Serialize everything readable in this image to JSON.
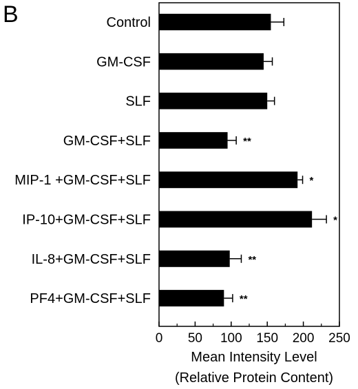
{
  "panel_label": "B",
  "chart_data": {
    "type": "bar",
    "orientation": "horizontal",
    "categories": [
      "Control",
      "GM-CSF",
      "SLF",
      "GM-CSF+SLF",
      "MIP-1 +GM-CSF+SLF",
      "IP-10+GM-CSF+SLF",
      "IL-8+GM-CSF+SLF",
      "PF4+GM-CSF+SLF"
    ],
    "values": [
      155,
      145,
      150,
      95,
      192,
      212,
      98,
      90
    ],
    "errors": [
      18,
      12,
      10,
      12,
      7,
      20,
      16,
      12
    ],
    "significance": [
      "",
      "",
      "",
      "**",
      "*",
      "*",
      "**",
      "**"
    ],
    "xlabel": "Mean Intensity Level",
    "xlabel_line2": "(Relative Protein Content)",
    "xlim": [
      0,
      250
    ],
    "xticks": [
      "0",
      "50",
      "100",
      "150",
      "200",
      "250"
    ],
    "bar_color": "#000000",
    "grid": false
  }
}
